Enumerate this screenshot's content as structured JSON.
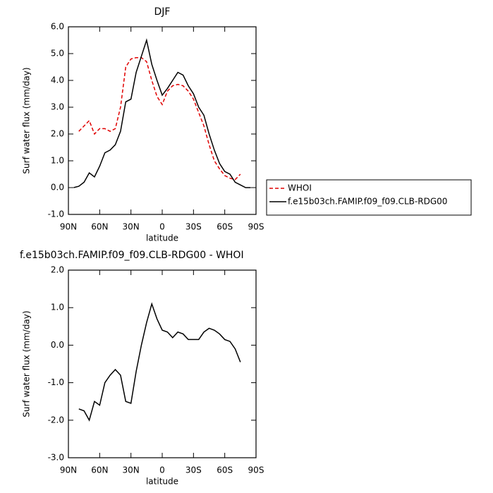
{
  "chart_data": [
    {
      "type": "line",
      "title": "DJF",
      "xlabel": "latitude",
      "ylabel": "Surf water flux (mm/day)",
      "x": [
        85,
        80,
        75,
        70,
        65,
        60,
        55,
        50,
        45,
        40,
        35,
        30,
        25,
        20,
        15,
        10,
        5,
        0,
        -5,
        -10,
        -15,
        -20,
        -25,
        -30,
        -35,
        -40,
        -45,
        -50,
        -55,
        -60,
        -65,
        -70,
        -75,
        -80,
        -85
      ],
      "series": [
        {
          "name": "WHOI",
          "color": "#e00000",
          "linestyle": "dashed",
          "values": [
            null,
            2.1,
            2.3,
            2.5,
            2.0,
            2.2,
            2.2,
            2.1,
            2.2,
            3.0,
            4.5,
            4.8,
            4.85,
            4.85,
            4.7,
            4.0,
            3.4,
            3.1,
            3.6,
            3.8,
            3.85,
            3.8,
            3.6,
            3.3,
            2.8,
            2.3,
            1.6,
            1.0,
            0.7,
            0.45,
            0.35,
            0.3,
            0.5,
            null,
            null
          ]
        },
        {
          "name": "f.e15b03ch.FAMIP.f09_f09.CLB-RDG00",
          "color": "#000000",
          "linestyle": "solid",
          "values": [
            0.0,
            0.05,
            0.2,
            0.55,
            0.4,
            0.8,
            1.3,
            1.4,
            1.6,
            2.1,
            3.2,
            3.3,
            4.3,
            4.9,
            5.5,
            4.6,
            4.0,
            3.45,
            3.7,
            4.0,
            4.3,
            4.2,
            3.8,
            3.5,
            3.0,
            2.7,
            2.0,
            1.4,
            0.9,
            0.6,
            0.5,
            0.2,
            0.1,
            0.0,
            0.0
          ]
        }
      ],
      "xlim": [
        90,
        -90
      ],
      "xticks": [
        {
          "value": 90,
          "label": "90N"
        },
        {
          "value": 60,
          "label": "60N"
        },
        {
          "value": 30,
          "label": "30N"
        },
        0,
        {
          "value": -30,
          "label": "30S"
        },
        {
          "value": -60,
          "label": "60S"
        },
        {
          "value": -90,
          "label": "90S"
        }
      ],
      "ylim": [
        -1,
        6
      ],
      "yticks": [
        {
          "value": -1,
          "label": "-1.0"
        },
        {
          "value": 0,
          "label": "0.0"
        },
        {
          "value": 1,
          "label": "1.0"
        },
        {
          "value": 2,
          "label": "2.0"
        },
        {
          "value": 3,
          "label": "3.0"
        },
        {
          "value": 4,
          "label": "4.0"
        },
        {
          "value": 5,
          "label": "5.0"
        },
        {
          "value": 6,
          "label": "6.0"
        }
      ],
      "legend": "outside-right"
    },
    {
      "type": "line",
      "title": "f.e15b03ch.FAMIP.f09_f09.CLB-RDG00 - WHOI",
      "xlabel": "latitude",
      "ylabel": "Surf water flux (mm/day)",
      "x": [
        85,
        80,
        75,
        70,
        65,
        60,
        55,
        50,
        45,
        40,
        35,
        30,
        25,
        20,
        15,
        10,
        5,
        0,
        -5,
        -10,
        -15,
        -20,
        -25,
        -30,
        -35,
        -40,
        -45,
        -50,
        -55,
        -60,
        -65,
        -70,
        -75,
        -80,
        -85
      ],
      "color": "#000000",
      "values": [
        null,
        -1.7,
        -1.75,
        -2.0,
        -1.5,
        -1.6,
        -1.0,
        -0.8,
        -0.65,
        -0.8,
        -1.5,
        -1.55,
        -0.7,
        0.0,
        0.6,
        1.1,
        0.7,
        0.4,
        0.35,
        0.2,
        0.35,
        0.3,
        0.15,
        0.15,
        0.15,
        0.35,
        0.45,
        0.4,
        0.3,
        0.15,
        0.1,
        -0.1,
        -0.45,
        null,
        null
      ],
      "xlim": [
        90,
        -90
      ],
      "xticks": [
        {
          "value": 90,
          "label": "90N"
        },
        {
          "value": 60,
          "label": "60N"
        },
        {
          "value": 30,
          "label": "30N"
        },
        0,
        {
          "value": -30,
          "label": "30S"
        },
        {
          "value": -60,
          "label": "60S"
        },
        {
          "value": -90,
          "label": "90S"
        }
      ],
      "ylim": [
        -3,
        2
      ],
      "yticks": [
        {
          "value": -3,
          "label": "-3.0"
        },
        {
          "value": -2,
          "label": "-2.0"
        },
        {
          "value": -1,
          "label": "-1.0"
        },
        {
          "value": 0,
          "label": "0.0"
        },
        {
          "value": 1,
          "label": "1.0"
        },
        {
          "value": 2,
          "label": "2.0"
        }
      ]
    }
  ]
}
